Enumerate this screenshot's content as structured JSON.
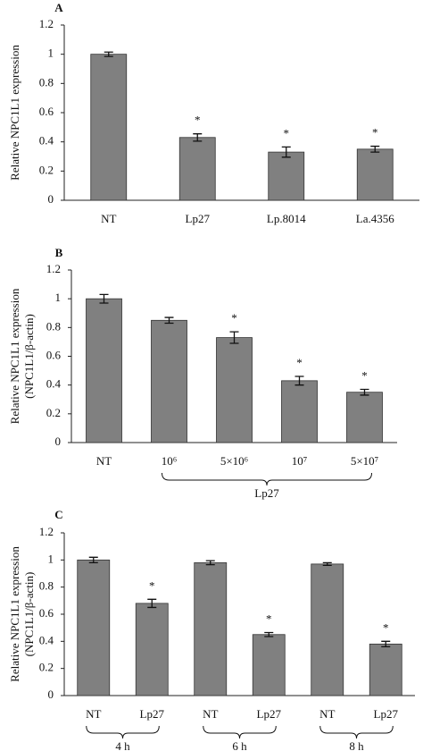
{
  "chart_data": [
    {
      "type": "bar",
      "panel": "A",
      "ylabel": [
        "Relative NPC1L1 expression"
      ],
      "categories": [
        "NT",
        "Lp27",
        "Lp.8014",
        "La.4356"
      ],
      "values": [
        1.0,
        0.43,
        0.33,
        0.35
      ],
      "errors": [
        0.015,
        0.025,
        0.035,
        0.02
      ],
      "annotations": [
        null,
        "*",
        "*",
        "*"
      ],
      "color": "#808080",
      "ylim": [
        0,
        1.2
      ],
      "yticks": [
        0,
        0.2,
        0.4,
        0.6,
        0.8,
        1,
        1.2
      ]
    },
    {
      "type": "bar",
      "panel": "B",
      "ylabel": [
        "Relative NPC1L1 expression",
        "(NPC1L1/β-actin)"
      ],
      "categories": [
        "NT",
        "10⁶",
        "5×10⁶",
        "10⁷",
        "5×10⁷"
      ],
      "values": [
        1.0,
        0.85,
        0.73,
        0.43,
        0.35
      ],
      "errors": [
        0.03,
        0.02,
        0.04,
        0.03,
        0.02
      ],
      "annotations": [
        null,
        null,
        "*",
        "*",
        "*"
      ],
      "color": "#808080",
      "groups": [
        {
          "label": "Lp27",
          "categories": [
            1,
            4
          ]
        }
      ],
      "ylim": [
        0,
        1.2
      ],
      "yticks": [
        0,
        0.2,
        0.4,
        0.6,
        0.8,
        1,
        1.2
      ]
    },
    {
      "type": "bar",
      "panel": "C",
      "ylabel": [
        "Relative NPC1L1 expression",
        "(NPC1L1/β-actin)"
      ],
      "categories": [
        "NT",
        "Lp27",
        "NT",
        "Lp27",
        "NT",
        "Lp27"
      ],
      "values": [
        1.0,
        0.68,
        0.98,
        0.45,
        0.97,
        0.38
      ],
      "errors": [
        0.02,
        0.03,
        0.015,
        0.015,
        0.01,
        0.02
      ],
      "annotations": [
        null,
        "*",
        null,
        "*",
        null,
        "*"
      ],
      "color": "#808080",
      "groups": [
        {
          "label": "4 h",
          "categories": [
            0,
            1
          ]
        },
        {
          "label": "6 h",
          "categories": [
            2,
            3
          ]
        },
        {
          "label": "8 h",
          "categories": [
            4,
            5
          ]
        }
      ],
      "ylim": [
        0,
        1.2
      ],
      "yticks": [
        0,
        0.2,
        0.4,
        0.6,
        0.8,
        1,
        1.2
      ]
    }
  ]
}
